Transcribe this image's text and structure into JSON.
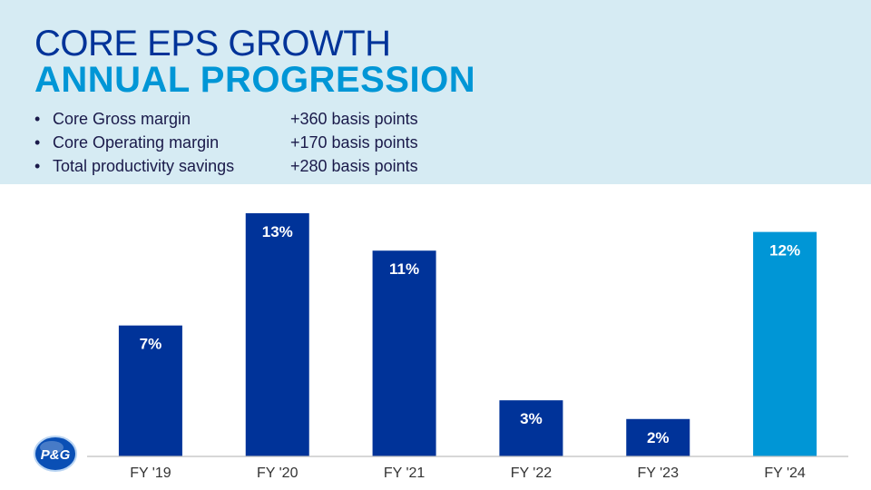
{
  "header": {
    "title": "CORE EPS GROWTH",
    "subtitle": "ANNUAL PROGRESSION",
    "bullets": [
      {
        "label": "Core Gross margin",
        "value": "+360 basis points"
      },
      {
        "label": "Core Operating margin",
        "value": "+170 basis points"
      },
      {
        "label": "Total productivity savings",
        "value": "+280 basis points"
      }
    ]
  },
  "logo": {
    "text": "P&G",
    "icon": "pg-logo-icon"
  },
  "colors": {
    "bar": "#003399",
    "highlight": "#0096d6",
    "header_bg": "#d6ebf3"
  },
  "chart_data": {
    "type": "bar",
    "categories": [
      "FY '19",
      "FY '20",
      "FY '21",
      "FY '22",
      "FY '23",
      "FY '24"
    ],
    "values": [
      7,
      13,
      11,
      3,
      2,
      12
    ],
    "labels": [
      "7%",
      "13%",
      "11%",
      "3%",
      "2%",
      "12%"
    ],
    "highlight_index": 5,
    "ylim": [
      0,
      13
    ],
    "grid": false,
    "xlabel": "",
    "ylabel": ""
  }
}
